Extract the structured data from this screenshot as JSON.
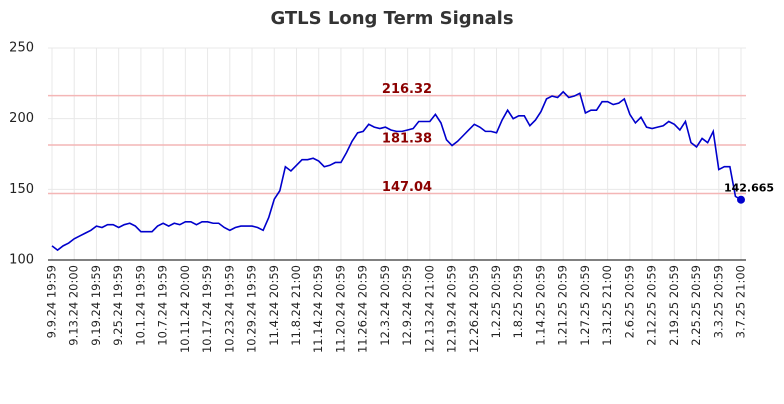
{
  "chart_data": {
    "type": "line",
    "title": "GTLS Long Term Signals",
    "categories": [
      "9.9.24 19:59",
      null,
      null,
      null,
      "9.13.24 20:00",
      null,
      null,
      null,
      "9.19.24 19:59",
      null,
      null,
      null,
      "9.25.24 19:59",
      null,
      null,
      null,
      "10.1.24 19:59",
      null,
      null,
      null,
      "10.7.24 19:59",
      null,
      null,
      null,
      "10.11.24 20:00",
      null,
      null,
      null,
      "10.17.24 19:59",
      null,
      null,
      null,
      "10.23.24 19:59",
      null,
      null,
      null,
      "10.29.24 19:59",
      null,
      null,
      null,
      "11.4.24 20:59",
      null,
      null,
      null,
      "11.8.24 21:00",
      null,
      null,
      null,
      "11.14.24 20:59",
      null,
      null,
      null,
      "11.20.24 20:59",
      null,
      null,
      null,
      "11.26.24 20:59",
      null,
      null,
      null,
      "12.3.24 20:59",
      null,
      null,
      null,
      "12.9.24 20:59",
      null,
      null,
      null,
      "12.13.24 21:00",
      null,
      null,
      null,
      "12.19.24 20:59",
      null,
      null,
      null,
      "12.26.24 20:59",
      null,
      null,
      null,
      "1.2.25 20:59",
      null,
      null,
      null,
      "1.8.25 20:59",
      null,
      null,
      null,
      "1.14.25 20:59",
      null,
      null,
      null,
      "1.21.25 20:59",
      null,
      null,
      null,
      "1.27.25 20:59",
      null,
      null,
      null,
      "1.31.25 21:00",
      null,
      null,
      null,
      "2.6.25 20:59",
      null,
      null,
      null,
      "2.12.25 20:59",
      null,
      null,
      null,
      "2.19.25 20:59",
      null,
      null,
      null,
      "2.25.25 20:59",
      null,
      null,
      null,
      "3.3.25 20:59",
      null,
      null,
      null,
      "3.7.25 21:00"
    ],
    "values": [
      110,
      107,
      110,
      112,
      115,
      117,
      119,
      121,
      124,
      123,
      125,
      125,
      123,
      125,
      126,
      124,
      120,
      120,
      120,
      124,
      126,
      124,
      126,
      125,
      127,
      127,
      125,
      127,
      127,
      126,
      126,
      123,
      121,
      123,
      124,
      124,
      124,
      123,
      121,
      130,
      143,
      149,
      166,
      163,
      167,
      171,
      171,
      172,
      170,
      166,
      167,
      169,
      169,
      176,
      184,
      190,
      191,
      196,
      194,
      193,
      194,
      192,
      191,
      191,
      192,
      193,
      198,
      198,
      198,
      203,
      197,
      185,
      181,
      184,
      188,
      192,
      196,
      194,
      191,
      191,
      190,
      199,
      206,
      200,
      202,
      202,
      195,
      199,
      205,
      214,
      216,
      215,
      219,
      215,
      216,
      218,
      204,
      206,
      206,
      212,
      212,
      210,
      211,
      214,
      203,
      197,
      201,
      194,
      193,
      194,
      195,
      198,
      196,
      192,
      198,
      183,
      180,
      186,
      183,
      191,
      164,
      166,
      166,
      145,
      142.665
    ],
    "color": "#0000cc",
    "reference_lines": [
      216.32,
      181.38,
      147.04
    ],
    "reference_color": "#f4b6b6",
    "reference_label_color": "#8b0000",
    "ylim": [
      100,
      250
    ],
    "yticks": [
      100,
      150,
      200,
      250
    ],
    "grid": true
  }
}
